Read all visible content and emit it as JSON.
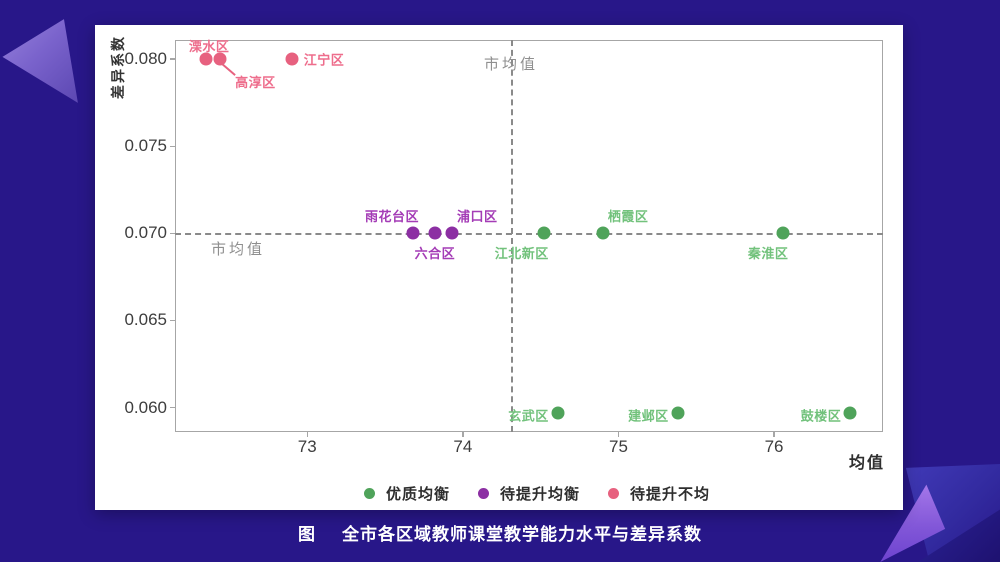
{
  "page": {
    "background_color": "#281789",
    "panel_color": "#ffffff"
  },
  "colors": {
    "axis_border": "#a6a6a6",
    "tick_text": "#3d3d3d",
    "dashed_line": "#8a8a8a",
    "reference_label_text": "#8f8f8f",
    "caption_text": "#ffffff",
    "decor_triangle_purple": "#9a86de",
    "decor_triangle_violet": "#a678ea",
    "decor_triangle_blue": "#413ab8"
  },
  "chart_data": {
    "type": "scatter",
    "caption_prefix": "图",
    "title": "全市各区域教师课堂教学能力水平与差异系数",
    "xlabel": "均值",
    "ylabel": "差异系数",
    "xlim": [
      72.15,
      76.7
    ],
    "ylim": [
      0.0586,
      0.0811
    ],
    "grid": false,
    "xticks": [
      {
        "value": 73,
        "label": "73"
      },
      {
        "value": 74,
        "label": "74"
      },
      {
        "value": 75,
        "label": "75"
      },
      {
        "value": 76,
        "label": "76"
      }
    ],
    "yticks": [
      {
        "value": 0.08,
        "label": "0.080"
      },
      {
        "value": 0.075,
        "label": "0.075"
      },
      {
        "value": 0.07,
        "label": "0.070"
      },
      {
        "value": 0.065,
        "label": "0.065"
      },
      {
        "value": 0.06,
        "label": "0.060"
      }
    ],
    "reference_lines": {
      "horizontal": {
        "y": 0.07,
        "label": "市均值"
      },
      "vertical": {
        "x": 74.31,
        "label": "市均值"
      }
    },
    "legend": {
      "position": "bottom"
    },
    "series": [
      {
        "name": "优质均衡",
        "dot_color": "#4fa35a",
        "label_color": "#72c27c",
        "points": [
          {
            "label": "江北新区",
            "x": 74.52,
            "y": 0.07,
            "label_pos": "below-left"
          },
          {
            "label": "栖霞区",
            "x": 74.9,
            "y": 0.07,
            "label_pos": "above-right"
          },
          {
            "label": "秦淮区",
            "x": 76.06,
            "y": 0.07,
            "label_pos": "below-left"
          },
          {
            "label": "玄武区",
            "x": 74.61,
            "y": 0.0597,
            "label_pos": "left"
          },
          {
            "label": "建邺区",
            "x": 75.38,
            "y": 0.0597,
            "label_pos": "left"
          },
          {
            "label": "鼓楼区",
            "x": 76.49,
            "y": 0.0597,
            "label_pos": "left"
          }
        ]
      },
      {
        "name": "待提升均衡",
        "dot_color": "#8c2fa3",
        "label_color": "#a43cb6",
        "points": [
          {
            "label": "雨花台区",
            "x": 73.68,
            "y": 0.07,
            "label_pos": "above-left"
          },
          {
            "label": "六合区",
            "x": 73.82,
            "y": 0.07,
            "label_pos": "below"
          },
          {
            "label": "浦口区",
            "x": 73.93,
            "y": 0.07,
            "label_pos": "above-right"
          }
        ]
      },
      {
        "name": "待提升不均",
        "dot_color": "#e7617f",
        "label_color": "#ee6d8c",
        "points": [
          {
            "label": "溧水区",
            "x": 72.35,
            "y": 0.08,
            "label_pos": "above",
            "label_dx": 3
          },
          {
            "label": "高淳区",
            "x": 72.44,
            "y": 0.08,
            "label_pos": "leader"
          },
          {
            "label": "江宁区",
            "x": 72.9,
            "y": 0.08,
            "label_pos": "right"
          }
        ]
      }
    ]
  }
}
